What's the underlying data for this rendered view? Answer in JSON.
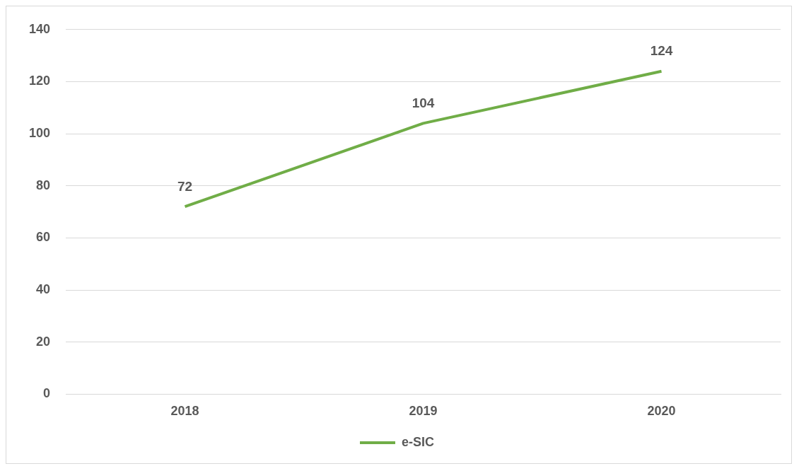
{
  "chart_data": {
    "type": "line",
    "categories": [
      "2018",
      "2019",
      "2020"
    ],
    "series": [
      {
        "name": "e-SIC",
        "color": "#70ad47",
        "values": [
          72,
          104,
          124
        ]
      }
    ],
    "ylim": [
      0,
      140
    ],
    "yticks": [
      0,
      20,
      40,
      60,
      80,
      100,
      120,
      140
    ],
    "grid": "y",
    "legend": "bottom",
    "data_labels": true,
    "marker": "none"
  }
}
